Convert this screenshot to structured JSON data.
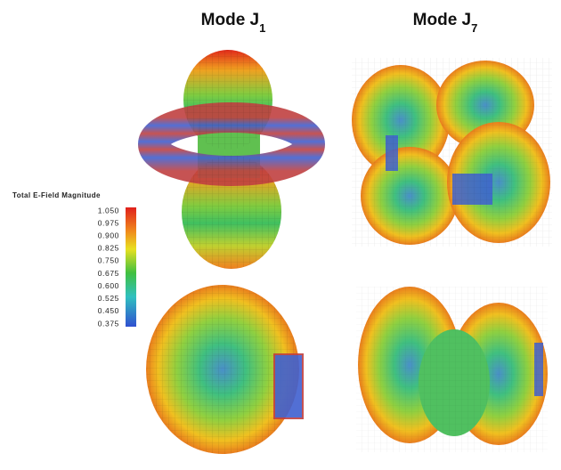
{
  "titles": [
    {
      "text": "Mode J",
      "subscript": "1"
    },
    {
      "text": "Mode J",
      "subscript": "7"
    }
  ],
  "colorbar": {
    "label": "Total E-Field Magnitude",
    "ticks": [
      "1.050",
      "0.975",
      "0.900",
      "0.825",
      "0.750",
      "0.675",
      "0.600",
      "0.525",
      "0.450",
      "0.375"
    ]
  }
}
